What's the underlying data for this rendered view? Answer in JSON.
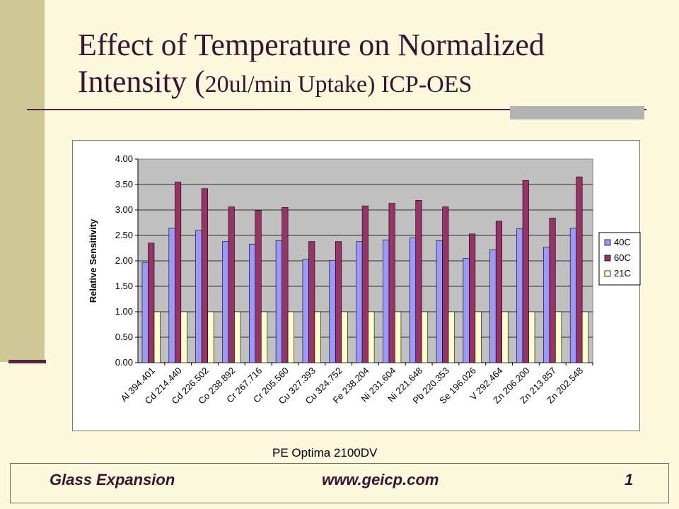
{
  "title": {
    "main": "Effect of Temperature on Normalized Intensity (",
    "small": "20ul/min Uptake) ICP-OES"
  },
  "caption": "PE Optima 2100DV",
  "footer": {
    "left": "Glass Expansion",
    "middle": "www.geicp.com",
    "right": "1"
  },
  "colors": {
    "40C": "#9999FF",
    "60C": "#993366",
    "21C": "#FFFFCC",
    "plot_bg": "#C0C0C0"
  },
  "chart_data": {
    "type": "bar",
    "title": "",
    "xlabel": "",
    "ylabel": "Relative Sensitivity",
    "ylim": [
      0,
      4
    ],
    "yticks": [
      "0.00",
      "0.50",
      "1.00",
      "1.50",
      "2.00",
      "2.50",
      "3.00",
      "3.50",
      "4.00"
    ],
    "grid": true,
    "legend_position": "right",
    "categories": [
      "Al 394.401",
      "Cd 214.440",
      "Cd 226.502",
      "Co 238.892",
      "Cr 267.716",
      "Cr 205.560",
      "Cu 327.393",
      "Cu 324.752",
      "Fe 238.204",
      "Ni 231.604",
      "Ni 221.648",
      "Pb 220.353",
      "Se 196.026",
      "V 292.464",
      "Zn 206.200",
      "Zn 213.857",
      "Zn 202.548"
    ],
    "series": [
      {
        "name": "40C",
        "values": [
          1.97,
          2.64,
          2.6,
          2.38,
          2.33,
          2.4,
          2.03,
          2.01,
          2.38,
          2.41,
          2.45,
          2.4,
          2.05,
          2.22,
          2.63,
          2.27,
          2.64
        ]
      },
      {
        "name": "60C",
        "values": [
          2.35,
          3.55,
          3.42,
          3.06,
          2.99,
          3.05,
          2.38,
          2.38,
          3.08,
          3.13,
          3.19,
          3.06,
          2.53,
          2.78,
          3.58,
          2.84,
          3.65
        ]
      },
      {
        "name": "21C",
        "values": [
          1,
          1,
          1,
          1,
          1,
          1,
          1,
          1,
          1,
          1,
          1,
          1,
          1,
          1,
          1,
          1,
          1
        ]
      }
    ]
  }
}
